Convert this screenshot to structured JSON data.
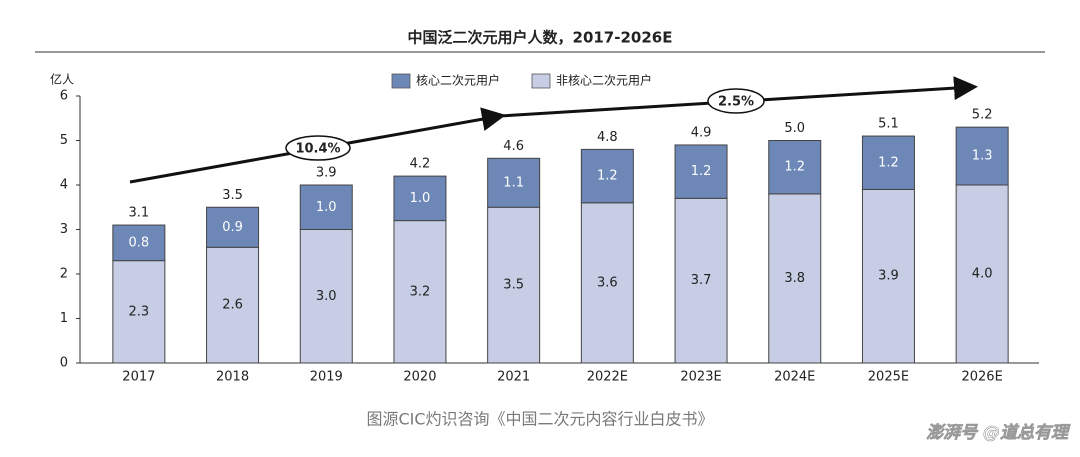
{
  "chart_data": {
    "type": "stacked_bar",
    "title": "中国泛二次元用户人数，2017-2026E",
    "y_label": "亿人",
    "categories": [
      "2017",
      "2018",
      "2019",
      "2020",
      "2021",
      "2022E",
      "2023E",
      "2024E",
      "2025E",
      "2026E"
    ],
    "series": [
      {
        "name": "核心二次元用户",
        "color": "#6d87b6",
        "values": [
          0.8,
          0.9,
          1.0,
          1.0,
          1.1,
          1.2,
          1.2,
          1.2,
          1.2,
          1.3
        ],
        "value_labels": [
          "0.8",
          "0.9",
          "1.0",
          "1.0",
          "1.1",
          "1.2",
          "1.2",
          "1.2",
          "1.2",
          "1.3"
        ]
      },
      {
        "name": "非核心二次元用户",
        "color": "#c6cde4",
        "values": [
          2.3,
          2.6,
          3.0,
          3.2,
          3.5,
          3.6,
          3.7,
          3.8,
          3.9,
          4.0
        ],
        "value_labels": [
          "2.3",
          "2.6",
          "3.0",
          "3.2",
          "3.5",
          "3.6",
          "3.7",
          "3.8",
          "3.9",
          "4.0"
        ]
      }
    ],
    "totals": {
      "values": [
        3.1,
        3.5,
        3.9,
        4.2,
        4.6,
        4.8,
        4.9,
        5.0,
        5.1,
        5.2
      ],
      "value_labels": [
        "3.1",
        "3.5",
        "3.9",
        "4.2",
        "4.6",
        "4.8",
        "4.9",
        "5.0",
        "5.1",
        "5.2"
      ]
    },
    "annotations": [
      "10.4%",
      "2.5%"
    ],
    "ylim": [
      0,
      6
    ],
    "yticks": [
      0,
      1,
      2,
      3,
      4,
      5,
      6
    ],
    "source": "图源CIC灼识咨询《中国二次元内容行业白皮书》",
    "brand": "澎湃号  @道总有理"
  }
}
